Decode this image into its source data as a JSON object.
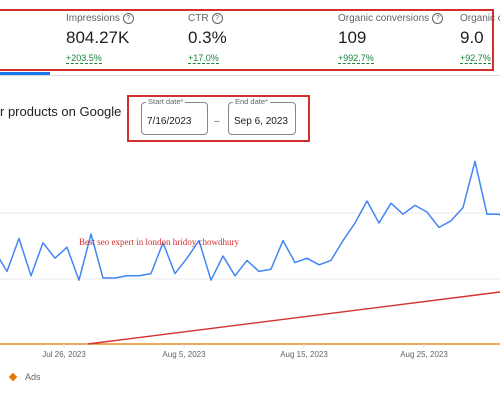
{
  "kpis": [
    {
      "label": "Impressions",
      "value": "804.27K",
      "change": "+203.5%"
    },
    {
      "label": "CTR",
      "value": "0.3%",
      "change": "+17.0%"
    },
    {
      "label": "Organic conversions",
      "value": "109",
      "change": "+992.7%"
    },
    {
      "label": "Organic co",
      "value": "9.0",
      "change": "+92.7%"
    }
  ],
  "section": {
    "title": "r products on Google"
  },
  "date_range": {
    "start_label": "Start date*",
    "start_value": "7/16/2023",
    "separator": "–",
    "end_label": "End date*",
    "end_value": "Sep 6, 2023"
  },
  "annotation": "Best seo expert in london hridoy chowdhury",
  "legend": {
    "ads_label": "Ads"
  },
  "colors": {
    "series": "#4285f4",
    "trend": "#d32f2f",
    "baseline": "#e37400",
    "change": "#188038"
  },
  "chart_data": {
    "type": "line",
    "x_tick_labels": [
      "Jul 26, 2023",
      "Aug 5, 2023",
      "Aug 15, 2023",
      "Aug 25, 2023"
    ],
    "series": [
      {
        "values": [
          42,
          33,
          48,
          31,
          46,
          39,
          44,
          29,
          50,
          30,
          30,
          31,
          31,
          32,
          46,
          32,
          39,
          47,
          29,
          40,
          31,
          38,
          33,
          34,
          47,
          37,
          39,
          36,
          38,
          47,
          55,
          65,
          55,
          64,
          59,
          63,
          60,
          53,
          56,
          62,
          83,
          59,
          59,
          55,
          56,
          66,
          47,
          81,
          68
        ]
      }
    ],
    "trend_line": {
      "start_index": 8,
      "end_index": 48
    },
    "grid": true
  }
}
